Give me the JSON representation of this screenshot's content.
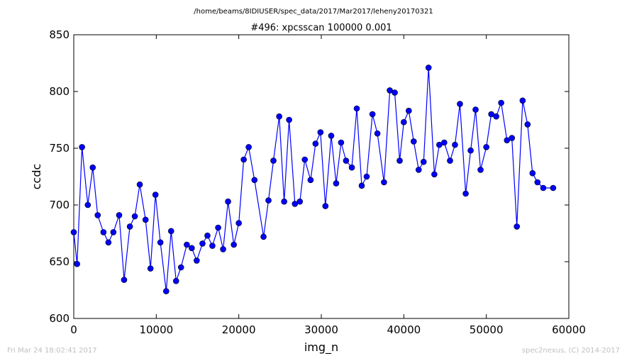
{
  "suptitle": "/home/beams/8IDIUSER/spec_data/2017/Mar2017/leheny20170321",
  "footer": {
    "timestamp": "Fri Mar 24 18:02:41 2017",
    "credit": "spec2nexus, (C) 2014-2017"
  },
  "chart_data": {
    "type": "line",
    "title": "#496: xpcsscan 100000 0.001",
    "xlabel": "img_n",
    "ylabel": "ccdc",
    "xlim": [
      0,
      60000
    ],
    "ylim": [
      600,
      850
    ],
    "xticks": [
      0,
      10000,
      20000,
      30000,
      40000,
      50000,
      60000
    ],
    "yticks": [
      600,
      650,
      700,
      750,
      800,
      850
    ],
    "grid": false,
    "marker": "circle",
    "color": "#0000ff",
    "series": [
      {
        "x": [
          0,
          400,
          1000,
          1700,
          2300,
          2900,
          3600,
          4200,
          4800,
          5500,
          6100,
          6800,
          7400,
          8000,
          8700,
          9300,
          9900,
          10500,
          11200,
          11800,
          12400,
          13000,
          13700,
          14300,
          14900,
          15600,
          16200,
          16800,
          17500,
          18100,
          18700,
          19400,
          20000,
          20600,
          21200,
          21900,
          23000,
          23600,
          24200,
          24900,
          25500,
          26100,
          26800,
          27400,
          28000,
          28700,
          29300,
          29900,
          30500,
          31200,
          31800,
          32400,
          33000,
          33700,
          34300,
          34900,
          35500,
          36200,
          36800,
          37600,
          38300,
          38900,
          39500,
          40000,
          40600,
          41200,
          41800,
          42400,
          43000,
          43700,
          44300,
          44900,
          45600,
          46200,
          46800,
          47500,
          48100,
          48700,
          49300,
          50000,
          50600,
          51200,
          51800,
          52500,
          53100,
          53700,
          54400,
          55000,
          55600,
          56200,
          56900,
          58100
        ],
        "y": [
          676,
          648,
          751,
          700,
          733,
          691,
          676,
          667,
          676,
          691,
          634,
          681,
          690,
          718,
          687,
          644,
          709,
          667,
          624,
          677,
          633,
          645,
          665,
          662,
          651,
          666,
          673,
          664,
          680,
          661,
          703,
          665,
          684,
          740,
          751,
          722,
          672,
          704,
          739,
          778,
          703,
          775,
          701,
          703,
          740,
          722,
          754,
          764,
          699,
          761,
          719,
          755,
          739,
          733,
          785,
          717,
          725,
          780,
          763,
          720,
          801,
          799,
          739,
          773,
          783,
          756,
          731,
          738,
          821,
          727,
          753,
          755,
          739,
          753,
          789,
          710,
          748,
          784,
          731,
          751,
          780,
          778,
          790,
          757,
          759,
          681,
          792,
          771,
          728,
          720,
          715,
          715
        ]
      }
    ]
  }
}
